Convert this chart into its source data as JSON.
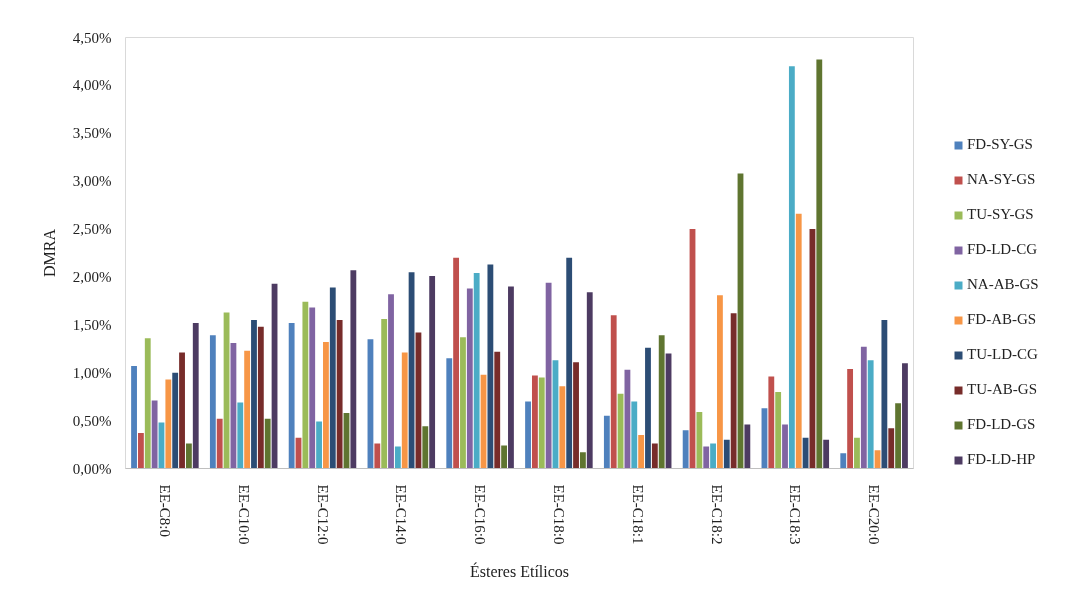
{
  "chart_data": {
    "type": "bar",
    "xlabel": "Ésteres Etílicos",
    "ylabel": "DMRA",
    "categories": [
      "EE-C8:0",
      "EE-C10:0",
      "EE-C12:0",
      "EE-C14:0",
      "EE-C16:0",
      "EE-C18:0",
      "EE-C18:1",
      "EE-C18:2",
      "EE-C18:3",
      "EE-C20:0"
    ],
    "ylim": [
      0,
      4.5
    ],
    "yticks": [
      {
        "value": 0,
        "label": "0,00%"
      },
      {
        "value": 0.5,
        "label": "0,50%"
      },
      {
        "value": 1,
        "label": "1,00%"
      },
      {
        "value": 1.5,
        "label": "1,50%"
      },
      {
        "value": 2,
        "label": "2,00%"
      },
      {
        "value": 2.5,
        "label": "2,50%"
      },
      {
        "value": 3,
        "label": "3,00%"
      },
      {
        "value": 3.5,
        "label": "3,50%"
      },
      {
        "value": 4,
        "label": "4,00%"
      },
      {
        "value": 4.5,
        "label": "4,50%"
      }
    ],
    "grid": false,
    "legend": "right",
    "series": [
      {
        "name": "FD-SY-GS",
        "color": "#4f81bd",
        "values": [
          1.07,
          1.39,
          1.52,
          1.35,
          1.15,
          0.7,
          0.55,
          0.4,
          0.63,
          0.16
        ]
      },
      {
        "name": "NA-SY-GS",
        "color": "#c0504d",
        "values": [
          0.37,
          0.52,
          0.32,
          0.26,
          2.2,
          0.97,
          1.6,
          2.5,
          0.96,
          1.04
        ]
      },
      {
        "name": "TU-SY-GS",
        "color": "#9bbb59",
        "values": [
          1.36,
          1.63,
          1.74,
          1.56,
          1.37,
          0.95,
          0.78,
          0.59,
          0.8,
          0.32
        ]
      },
      {
        "name": "FD-LD-CG",
        "color": "#8064a2",
        "values": [
          0.71,
          1.31,
          1.68,
          1.82,
          1.88,
          1.94,
          1.03,
          0.23,
          0.46,
          1.27
        ]
      },
      {
        "name": "NA-AB-GS",
        "color": "#4bacc6",
        "values": [
          0.48,
          0.69,
          0.49,
          0.23,
          2.04,
          1.13,
          0.7,
          0.26,
          4.2,
          1.13
        ]
      },
      {
        "name": "FD-AB-GS",
        "color": "#f79646",
        "values": [
          0.93,
          1.23,
          1.32,
          1.21,
          0.98,
          0.86,
          0.35,
          1.81,
          2.66,
          0.19
        ]
      },
      {
        "name": "TU-LD-CG",
        "color": "#2c4d75",
        "values": [
          1.0,
          1.55,
          1.89,
          2.05,
          2.13,
          2.2,
          1.26,
          0.3,
          0.32,
          1.55
        ]
      },
      {
        "name": "TU-AB-GS",
        "color": "#772c2a",
        "values": [
          1.21,
          1.48,
          1.55,
          1.42,
          1.22,
          1.11,
          0.26,
          1.62,
          2.5,
          0.42
        ]
      },
      {
        "name": "FD-LD-GS",
        "color": "#5f7530",
        "values": [
          0.26,
          0.52,
          0.58,
          0.44,
          0.24,
          0.17,
          1.39,
          3.08,
          4.27,
          0.68
        ]
      },
      {
        "name": "FD-LD-HP",
        "color": "#4d3b62",
        "values": [
          1.52,
          1.93,
          2.07,
          2.01,
          1.9,
          1.84,
          1.2,
          0.46,
          0.3,
          1.1
        ]
      }
    ]
  }
}
